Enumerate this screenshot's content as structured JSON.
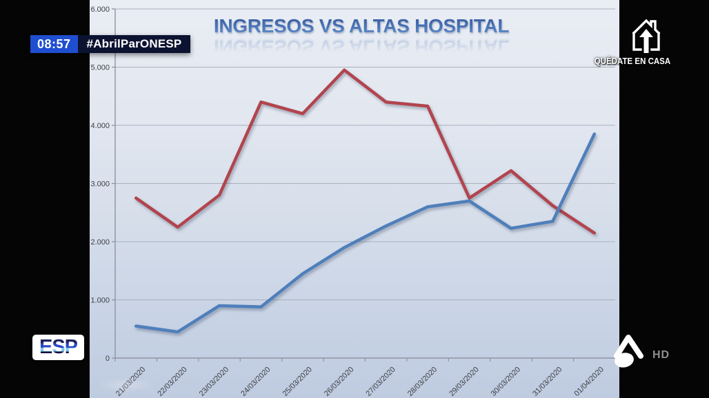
{
  "broadcast": {
    "time": "08:57",
    "hashtag": "#AbrilParONESP",
    "stay_home_label": "QUÉDATE EN CASA",
    "stay_home_icon": "house-arrow-up-icon",
    "channel_badge": "ESP",
    "network_icon": "antena3-a-icon",
    "hd_label": "HD"
  },
  "colors": {
    "time_badge_bg": "#1f4ed0",
    "hashtag_bg": "#0b1331",
    "title_blue": "#4a74b6",
    "line_red": "#b2444d",
    "line_blue": "#4f7fbb",
    "gridline": "#a9b0bd",
    "hd_gray": "#8f8f8f"
  },
  "chart_data": {
    "type": "line",
    "title": "INGRESOS VS ALTAS HOSPITAL",
    "categories": [
      "21/03/2020",
      "22/03/2020",
      "23/03/2020",
      "24/03/2020",
      "25/03/2020",
      "26/03/2020",
      "27/03/2020",
      "28/03/2020",
      "29/03/2020",
      "30/03/2020",
      "31/03/2020",
      "01/04/2020"
    ],
    "series": [
      {
        "name": "line-red",
        "color": "#b2444d",
        "values": [
          2750,
          2250,
          2800,
          4400,
          4200,
          4950,
          4400,
          4330,
          2750,
          3220,
          2620,
          2150
        ]
      },
      {
        "name": "line-blue",
        "color": "#4f7fbb",
        "values": [
          550,
          450,
          900,
          880,
          1450,
          1900,
          2270,
          2600,
          2700,
          2230,
          2350,
          3850
        ]
      }
    ],
    "ylim": [
      0,
      6000
    ],
    "yticks": [
      0,
      1000,
      2000,
      3000,
      4000,
      5000,
      6000
    ],
    "ytick_labels": [
      "0",
      "1.000",
      "2.000",
      "3.000",
      "4.000",
      "5.000",
      "6.000"
    ],
    "xlabel": "",
    "ylabel": "",
    "grid": true,
    "legend": "none",
    "x_labels_rotated_deg": -45
  }
}
